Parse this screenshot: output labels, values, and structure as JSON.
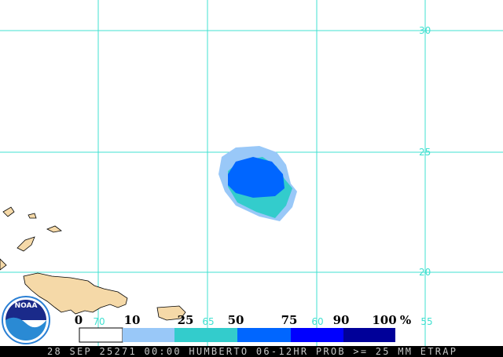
{
  "map": {
    "lat_labels": [
      "30",
      "25",
      "20"
    ],
    "lon_labels": [
      "70",
      "65",
      "60",
      "55"
    ]
  },
  "legend": {
    "labels": [
      "0",
      "10",
      "25",
      "50",
      "75",
      "90",
      "100",
      "%"
    ]
  },
  "logo": "NOAA",
  "caption": "28 SEP 25271 00:00 HUMBERTO 06-12HR PROB >= 25 MM ETRAP"
}
